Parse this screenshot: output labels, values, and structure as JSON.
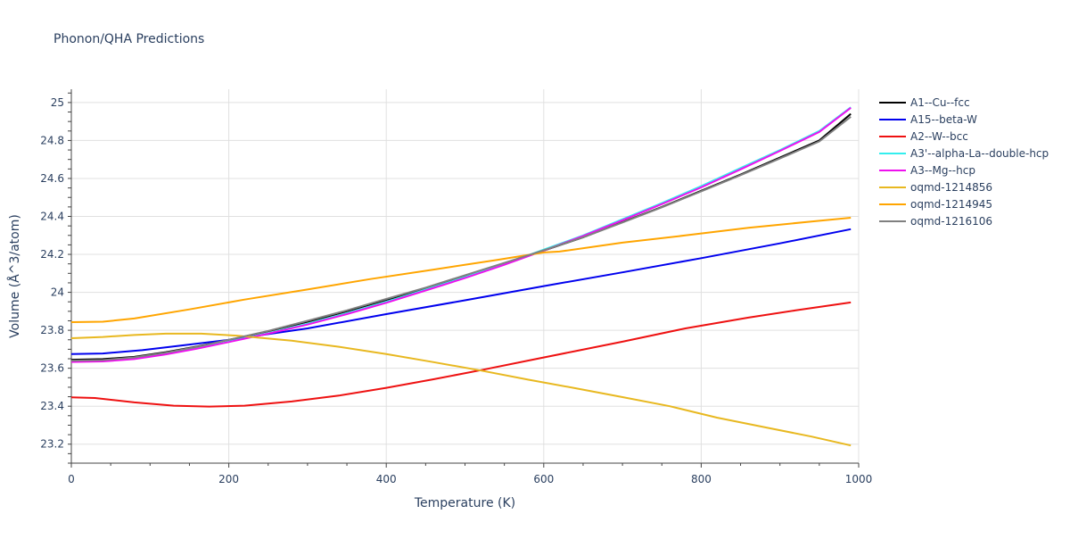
{
  "chart_data": {
    "type": "line",
    "title": "Phonon/QHA Predictions",
    "xlabel": "Temperature (K)",
    "ylabel": "Volume (Å^3/atom)",
    "xlim": [
      0,
      1000
    ],
    "ylim": [
      23.1,
      25.07
    ],
    "xticks": [
      0,
      200,
      400,
      600,
      800,
      1000
    ],
    "yticks": [
      23.2,
      23.4,
      23.6,
      23.8,
      24,
      24.2,
      24.4,
      24.6,
      24.8,
      25
    ],
    "ytick_labels": [
      "23.2",
      "23.4",
      "23.6",
      "23.8",
      "24",
      "24.2",
      "24.4",
      "24.6",
      "24.8",
      "25"
    ],
    "grid": true,
    "legend_position": "right",
    "series": [
      {
        "name": "A1--Cu--fcc",
        "color": "#000000",
        "x": [
          0,
          40,
          80,
          120,
          160,
          200,
          250,
          300,
          350,
          400,
          450,
          500,
          550,
          600,
          650,
          700,
          750,
          800,
          850,
          900,
          950,
          990
        ],
        "y": [
          23.645,
          23.648,
          23.66,
          23.685,
          23.715,
          23.75,
          23.795,
          23.845,
          23.9,
          23.96,
          24.02,
          24.085,
          24.15,
          24.22,
          24.29,
          24.37,
          24.45,
          24.535,
          24.62,
          24.71,
          24.8,
          24.94
        ]
      },
      {
        "name": "A15--beta-W",
        "color": "#0000ee",
        "x": [
          0,
          40,
          90,
          150,
          200,
          250,
          300,
          400,
          500,
          600,
          700,
          800,
          900,
          990
        ],
        "y": [
          23.675,
          23.678,
          23.695,
          23.725,
          23.75,
          23.78,
          23.81,
          23.885,
          23.958,
          24.033,
          24.105,
          24.18,
          24.258,
          24.333
        ]
      },
      {
        "name": "A2--W--bcc",
        "color": "#ee1111",
        "x": [
          0,
          30,
          80,
          130,
          175,
          220,
          280,
          340,
          400,
          460,
          520,
          580,
          640,
          700,
          780,
          860,
          920,
          990
        ],
        "y": [
          23.447,
          23.443,
          23.42,
          23.403,
          23.398,
          23.403,
          23.425,
          23.456,
          23.497,
          23.542,
          23.59,
          23.64,
          23.69,
          23.74,
          23.81,
          23.867,
          23.905,
          23.947
        ]
      },
      {
        "name": "A3'--alpha-La--double-hcp",
        "color": "#33eeee",
        "x": [
          0,
          40,
          80,
          120,
          160,
          200,
          250,
          300,
          350,
          400,
          450,
          500,
          550,
          600,
          650,
          700,
          750,
          800,
          850,
          900,
          950,
          990
        ],
        "y": [
          23.635,
          23.638,
          23.65,
          23.675,
          23.705,
          23.74,
          23.785,
          23.835,
          23.89,
          23.95,
          24.015,
          24.08,
          24.15,
          24.225,
          24.3,
          24.385,
          24.47,
          24.56,
          24.655,
          24.75,
          24.85,
          24.975
        ]
      },
      {
        "name": "A3--Mg--hcp",
        "color": "#ee11ee",
        "x": [
          0,
          40,
          80,
          120,
          160,
          200,
          250,
          300,
          350,
          400,
          450,
          500,
          550,
          600,
          650,
          700,
          750,
          800,
          850,
          900,
          950,
          990
        ],
        "y": [
          23.633,
          23.636,
          23.648,
          23.673,
          23.703,
          23.738,
          23.782,
          23.83,
          23.885,
          23.945,
          24.01,
          24.075,
          24.145,
          24.22,
          24.297,
          24.38,
          24.465,
          24.553,
          24.648,
          24.745,
          24.845,
          24.972
        ]
      },
      {
        "name": "oqmd-1214856",
        "color": "#e8b820",
        "x": [
          0,
          40,
          80,
          120,
          165,
          210,
          280,
          340,
          400,
          460,
          520,
          580,
          640,
          700,
          760,
          820,
          880,
          940,
          990
        ],
        "y": [
          23.758,
          23.765,
          23.775,
          23.782,
          23.782,
          23.772,
          23.745,
          23.713,
          23.675,
          23.632,
          23.588,
          23.54,
          23.495,
          23.448,
          23.4,
          23.34,
          23.29,
          23.24,
          23.193
        ]
      },
      {
        "name": "oqmd-1214945",
        "color": "#ffa500",
        "x": [
          0,
          40,
          80,
          150,
          220,
          300,
          380,
          460,
          540,
          600,
          620,
          700,
          780,
          860,
          940,
          990
        ],
        "y": [
          23.843,
          23.845,
          23.862,
          23.91,
          23.962,
          24.015,
          24.07,
          24.12,
          24.17,
          24.21,
          24.215,
          24.262,
          24.3,
          24.34,
          24.373,
          24.393
        ]
      },
      {
        "name": "oqmd-1216106",
        "color": "#808080",
        "x": [
          0,
          40,
          80,
          120,
          160,
          200,
          250,
          300,
          350,
          400,
          450,
          500,
          550,
          600,
          650,
          700,
          750,
          800,
          850,
          900,
          950,
          990
        ],
        "y": [
          23.64,
          23.643,
          23.657,
          23.682,
          23.713,
          23.75,
          23.797,
          23.85,
          23.905,
          23.965,
          24.025,
          24.09,
          24.155,
          24.222,
          24.29,
          24.368,
          24.448,
          24.532,
          24.617,
          24.705,
          24.795,
          24.925
        ]
      }
    ]
  }
}
